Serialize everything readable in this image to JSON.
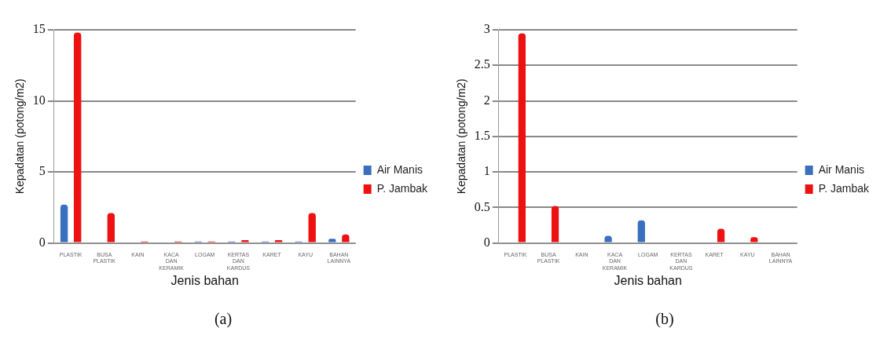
{
  "chart_data": [
    {
      "type": "bar",
      "title": "(a)",
      "xlabel": "Jenis bahan",
      "ylabel": "Kepadatan (potong/m2)",
      "categories": [
        "PLASTIK",
        "BUSA PLASTIK",
        "KAIN",
        "KACA DAN KERAMIK",
        "LOGAM",
        "KERTAS DAN KARDUS",
        "KARET",
        "KAYU",
        "BAHAN LAINNYA"
      ],
      "series": [
        {
          "name": "Air Manis",
          "color": "#3a6fbf",
          "values": [
            2.7,
            0,
            0,
            0,
            0.1,
            0.1,
            0.1,
            0.1,
            0.3
          ]
        },
        {
          "name": "P. Jambak",
          "color": "#ee1111",
          "values": [
            14.8,
            2.1,
            0.1,
            0.1,
            0.1,
            0.2,
            0.2,
            2.1,
            0.6
          ]
        }
      ],
      "ylim": [
        0,
        15
      ],
      "yticks": [
        0,
        5,
        10,
        15
      ],
      "grid": "y",
      "legend": "right"
    },
    {
      "type": "bar",
      "title": "(b)",
      "xlabel": "Jenis bahan",
      "ylabel": "Kepadatan (potong/m2)",
      "categories": [
        "PLASTIK",
        "BUSA PLASTIK",
        "KAIN",
        "KACA DAN KERAMIK",
        "LOGAM",
        "KERTAS DAN KARDUS",
        "KARET",
        "KAYU",
        "BAHAN LAINNYA"
      ],
      "series": [
        {
          "name": "Air Manis",
          "color": "#3a6fbf",
          "values": [
            0,
            0,
            0,
            0.1,
            0.32,
            0,
            0,
            0,
            0
          ]
        },
        {
          "name": "P. Jambak",
          "color": "#ee1111",
          "values": [
            2.95,
            0.52,
            0,
            0,
            0,
            0,
            0.2,
            0.08,
            0
          ]
        }
      ],
      "ylim": [
        0,
        3
      ],
      "yticks": [
        0,
        0.5,
        1,
        1.5,
        2,
        2.5,
        3
      ],
      "grid": "y",
      "legend": "right"
    }
  ]
}
